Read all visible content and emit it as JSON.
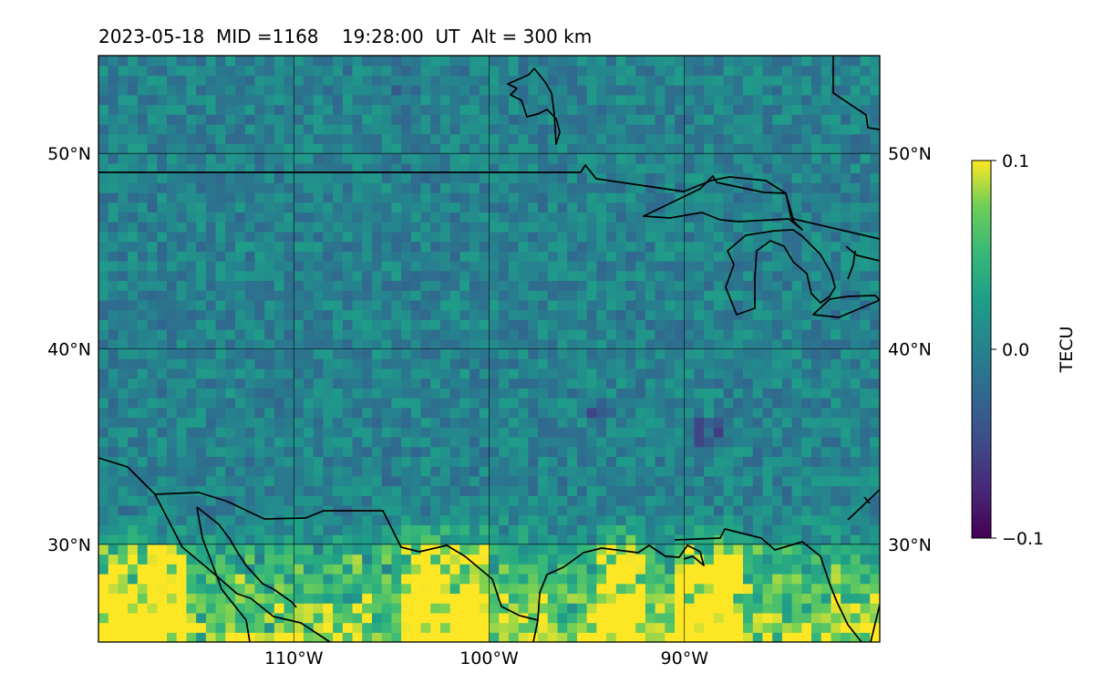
{
  "title": "2023-05-18  MID =1168    19:28:00  UT  Alt = 300 km",
  "chart_data": {
    "type": "heatmap",
    "title": "2023-05-18  MID =1168    19:28:00  UT  Alt = 300 km",
    "map_projection": "equirectangular",
    "lon_range": [
      -120,
      -80
    ],
    "lat_range": [
      25,
      55
    ],
    "grid": true,
    "xticks": [
      -110,
      -100,
      -90
    ],
    "xtick_labels": [
      "110°W",
      "100°W",
      "90°W"
    ],
    "yticks": [
      30,
      40,
      50
    ],
    "ytick_labels": [
      "30°N",
      "40°N",
      "50°N"
    ],
    "colorbar": {
      "label": "TECU",
      "colormap": "viridis",
      "range": [
        -0.1,
        0.1
      ],
      "ticks": [
        0.1,
        0.0,
        -0.1
      ],
      "tick_labels": [
        "0.1",
        "0.0",
        "−0.1"
      ],
      "placement": "right"
    },
    "field_summary": [
      {
        "region": "lat 37-55N, all longitudes",
        "typical_value": 0.0
      },
      {
        "region": "lat 25-31N, -120 to -116 and -105 to -88",
        "typical_value": 0.1
      },
      {
        "region": "isolated minima near -94.5E 36.5N and -89E 35.5N",
        "typical_value": -0.05
      }
    ],
    "coastlines": "continental outlines, US-Canada border at 49N, Great Lakes, Gulf of Mexico coast"
  }
}
